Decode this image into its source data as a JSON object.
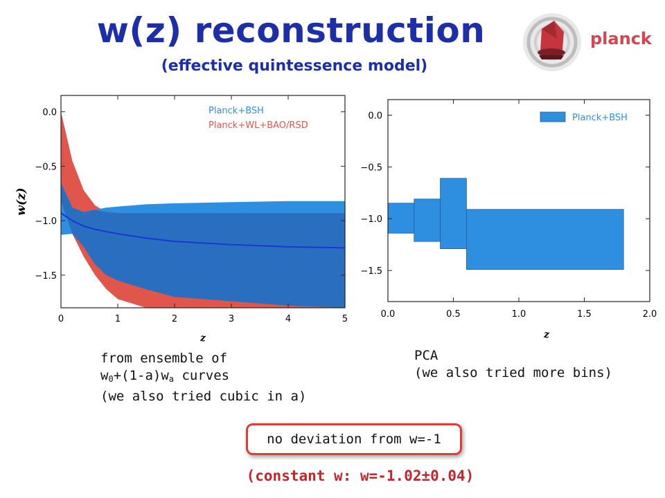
{
  "header": {
    "title": "w(z) reconstruction",
    "subtitle": "(effective quintessence model)",
    "logo_text": "planck"
  },
  "colors": {
    "title": "#1d2fa8",
    "planck_bsh": "#2e8fe0",
    "planck_bsh_dark": "#2a6fbf",
    "planck_wl_bao_rsd": "#e0564b",
    "best_fit_line": "#1a35d6",
    "accent_red": "#c0272d"
  },
  "chart_data": [
    {
      "type": "area",
      "xlabel": "z",
      "ylabel": "w(z)",
      "xlim": [
        0,
        5
      ],
      "ylim": [
        -1.8,
        0.15
      ],
      "xticks": [
        "0",
        "1",
        "2",
        "3",
        "4",
        "5"
      ],
      "yticks": [
        "0.0",
        "−0.5",
        "−1.0",
        "−1.5"
      ],
      "legend_position": "top-right",
      "series": [
        {
          "name": "Planck+WL+BAO/RSD",
          "color": "#e0564b",
          "x": [
            0.0,
            0.2,
            0.4,
            0.6,
            0.8,
            1.0,
            1.5,
            2.0,
            3.0,
            4.0,
            5.0
          ],
          "upper": [
            0.0,
            -0.45,
            -0.72,
            -0.86,
            -0.92,
            -0.93,
            -0.93,
            -0.93,
            -0.93,
            -0.93,
            -0.93
          ],
          "lower": [
            -0.82,
            -1.12,
            -1.33,
            -1.5,
            -1.63,
            -1.72,
            -1.8,
            -1.8,
            -1.8,
            -1.8,
            -1.8
          ]
        },
        {
          "name": "Planck+BSH",
          "color": "#2e8fe0",
          "x": [
            0.0,
            0.2,
            0.4,
            0.6,
            0.8,
            1.0,
            1.5,
            2.0,
            3.0,
            4.0,
            5.0
          ],
          "upper": [
            -0.65,
            -0.88,
            -0.92,
            -0.9,
            -0.88,
            -0.87,
            -0.85,
            -0.84,
            -0.83,
            -0.82,
            -0.82
          ],
          "lower": [
            -1.13,
            -1.12,
            -1.24,
            -1.4,
            -1.5,
            -1.55,
            -1.63,
            -1.7,
            -1.74,
            -1.78,
            -1.8
          ],
          "best_fit": [
            -0.93,
            -1.0,
            -1.05,
            -1.08,
            -1.1,
            -1.12,
            -1.16,
            -1.19,
            -1.22,
            -1.24,
            -1.25
          ]
        }
      ]
    },
    {
      "type": "bar",
      "xlabel": "z",
      "xlim": [
        0,
        2.0
      ],
      "ylim": [
        -1.8,
        0.15
      ],
      "xticks": [
        "0.0",
        "0.5",
        "1.0",
        "1.5",
        "2.0"
      ],
      "yticks": [
        "0.0",
        "−0.5",
        "−1.0",
        "−1.5"
      ],
      "legend_position": "top-right",
      "series": [
        {
          "name": "Planck+BSH",
          "color": "#2e8fe0",
          "bins": [
            {
              "z_min": 0.0,
              "z_max": 0.2,
              "w_upper": -0.85,
              "w_lower": -1.14
            },
            {
              "z_min": 0.2,
              "z_max": 0.4,
              "w_upper": -0.81,
              "w_lower": -1.22
            },
            {
              "z_min": 0.4,
              "z_max": 0.6,
              "w_upper": -0.61,
              "w_lower": -1.29
            },
            {
              "z_min": 0.6,
              "z_max": 1.8,
              "w_upper": -0.91,
              "w_lower": -1.49
            }
          ]
        }
      ]
    }
  ],
  "notes": {
    "left_line1": "from ensemble of",
    "left_w0": "w",
    "left_w0_sub": "0",
    "left_mid": "+(1-a)w",
    "left_wa_sub": "a",
    "left_curves": " curves",
    "left_line3": "(we also tried cubic in a)",
    "right_line1": "PCA",
    "right_line2": "(we also tried more bins)",
    "callout": "no deviation from w=-1",
    "constant": "(constant w: w=-1.02±0.04)"
  }
}
